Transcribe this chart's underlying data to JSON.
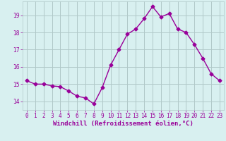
{
  "x": [
    0,
    1,
    2,
    3,
    4,
    5,
    6,
    7,
    8,
    9,
    10,
    11,
    12,
    13,
    14,
    15,
    16,
    17,
    18,
    19,
    20,
    21,
    22,
    23
  ],
  "y": [
    15.2,
    15.0,
    15.0,
    14.9,
    14.85,
    14.6,
    14.3,
    14.2,
    13.85,
    14.8,
    16.1,
    17.0,
    17.9,
    18.2,
    18.8,
    19.5,
    18.9,
    19.1,
    18.2,
    18.0,
    17.3,
    16.5,
    15.6,
    15.2
  ],
  "line_color": "#990099",
  "marker": "D",
  "markersize": 2.5,
  "linewidth": 1.0,
  "bg_color": "#d8f0f0",
  "grid_color": "#b0c8c8",
  "xlabel": "Windchill (Refroidissement éolien,°C)",
  "xlabel_fontsize": 6.5,
  "tick_fontsize": 5.5,
  "yticks": [
    14,
    15,
    16,
    17,
    18,
    19
  ],
  "xtick_labels": [
    "0",
    "1",
    "2",
    "3",
    "4",
    "5",
    "6",
    "7",
    "8",
    "9",
    "10",
    "11",
    "12",
    "13",
    "14",
    "15",
    "16",
    "17",
    "18",
    "19",
    "20",
    "21",
    "22",
    "23"
  ],
  "xlim": [
    -0.5,
    23.5
  ],
  "ylim": [
    13.5,
    19.8
  ]
}
